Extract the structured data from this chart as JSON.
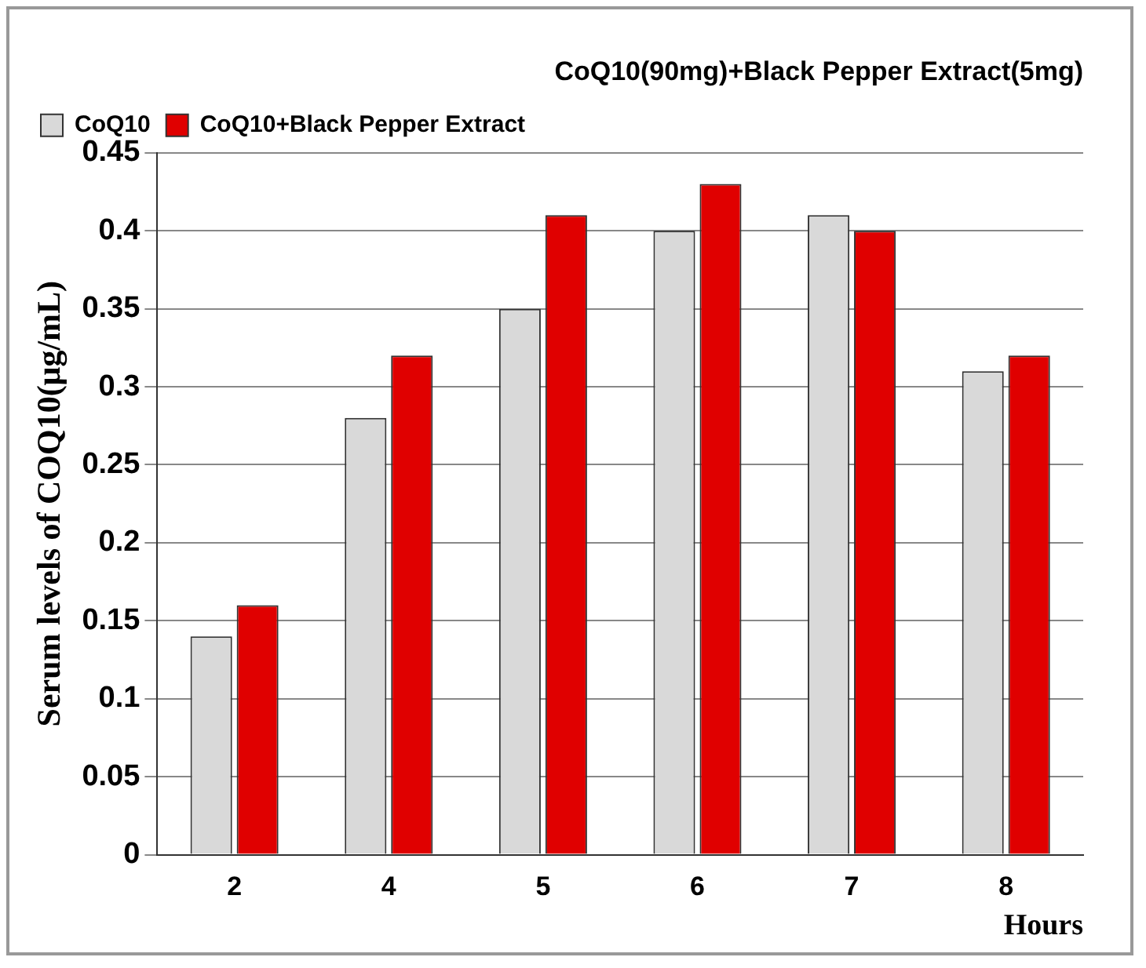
{
  "chart_data": {
    "type": "bar",
    "title": "CoQ10(90mg)+Black Pepper Extract(5mg)",
    "xlabel": "Hours",
    "ylabel": "Serum levels of COQ10(μg/mL)",
    "categories": [
      "2",
      "4",
      "5",
      "6",
      "7",
      "8"
    ],
    "series": [
      {
        "name": "CoQ10",
        "color": "#d9d9d9",
        "values": [
          0.14,
          0.28,
          0.35,
          0.4,
          0.41,
          0.31
        ]
      },
      {
        "name": "CoQ10+Black Pepper Extract",
        "color": "#e00000",
        "values": [
          0.16,
          0.32,
          0.41,
          0.43,
          0.4,
          0.32
        ]
      }
    ],
    "ylim": [
      0,
      0.45
    ],
    "yticks": [
      0,
      0.05,
      0.1,
      0.15,
      0.2,
      0.25,
      0.3,
      0.35,
      0.4,
      0.45
    ],
    "grid": "y",
    "legend": "top left"
  }
}
